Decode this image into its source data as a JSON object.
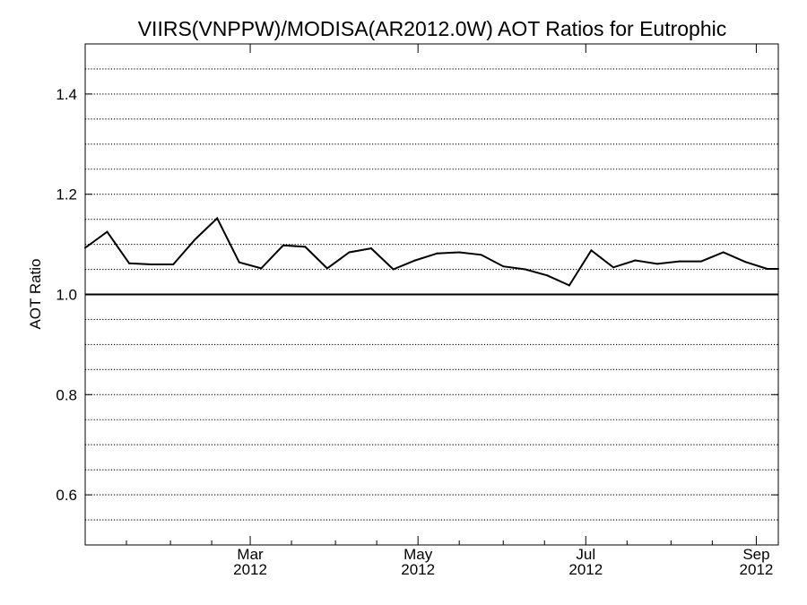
{
  "chart_data": {
    "type": "line",
    "title": "VIIRS(VNPPW)/MODISA(AR2012.0W)  AOT Ratios for Eutrophic",
    "xlabel": "",
    "ylabel": "AOT Ratio",
    "ylim": [
      0.5,
      1.5
    ],
    "y_ticks": [
      "0.6",
      "0.8",
      "1.0",
      "1.2",
      "1.4"
    ],
    "y_tick_values": [
      0.6,
      0.8,
      1.0,
      1.2,
      1.4
    ],
    "x_axis_start": "2012-01-01",
    "x_axis_end": "2012-09-09",
    "x_ticks": [
      {
        "date": "2012-03-01",
        "month": "Mar",
        "year": "2012"
      },
      {
        "date": "2012-05-01",
        "month": "May",
        "year": "2012"
      },
      {
        "date": "2012-07-01",
        "month": "Jul",
        "year": "2012"
      },
      {
        "date": "2012-09-01",
        "month": "Sep",
        "year": "2012"
      }
    ],
    "grid": "horizontal dotted lines every 0.05",
    "reference_line": 1.0,
    "series": [
      {
        "x": [
          "2012-01-01",
          "2012-01-09",
          "2012-01-17",
          "2012-01-25",
          "2012-02-02",
          "2012-02-10",
          "2012-02-18",
          "2012-02-26",
          "2012-03-05",
          "2012-03-13",
          "2012-03-21",
          "2012-03-29",
          "2012-04-06",
          "2012-04-14",
          "2012-04-22",
          "2012-04-30",
          "2012-05-08",
          "2012-05-16",
          "2012-05-24",
          "2012-06-01",
          "2012-06-09",
          "2012-06-17",
          "2012-06-25",
          "2012-07-03",
          "2012-07-11",
          "2012-07-19",
          "2012-07-27",
          "2012-08-04",
          "2012-08-12",
          "2012-08-20",
          "2012-08-28",
          "2012-09-05",
          "2012-09-09"
        ],
        "values": [
          1.093,
          1.125,
          1.062,
          1.06,
          1.06,
          1.11,
          1.152,
          1.064,
          1.052,
          1.098,
          1.095,
          1.052,
          1.084,
          1.092,
          1.05,
          1.068,
          1.082,
          1.084,
          1.079,
          1.056,
          1.05,
          1.038,
          1.018,
          1.088,
          1.054,
          1.068,
          1.061,
          1.066,
          1.066,
          1.084,
          1.065,
          1.051,
          1.051
        ]
      }
    ]
  }
}
